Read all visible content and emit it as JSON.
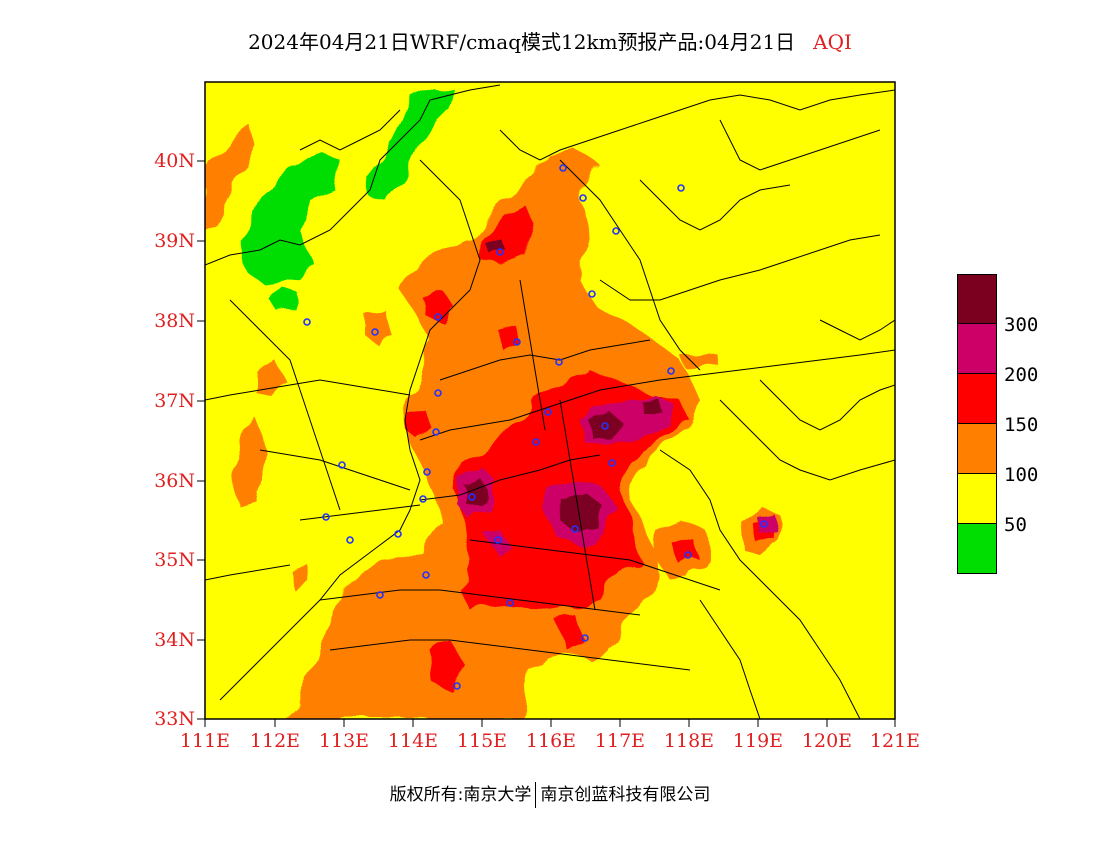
{
  "title": {
    "text": "2024年04月21日WRF/cmaq模式12km预报产品:04月21日",
    "variable": "AQI"
  },
  "map": {
    "lat_labels": [
      "40N",
      "39N",
      "38N",
      "37N",
      "36N",
      "35N",
      "34N",
      "33N"
    ],
    "lon_labels": [
      "111E",
      "112E",
      "113E",
      "114E",
      "115E",
      "116E",
      "117E",
      "118E",
      "119E",
      "120E",
      "121E"
    ]
  },
  "legend": {
    "levels": [
      "300",
      "200",
      "150",
      "100",
      "50"
    ],
    "colors": [
      "#7b0020",
      "#cc0066",
      "#ff0000",
      "#ff8000",
      "#ffff00",
      "#00dd00"
    ]
  },
  "footer": {
    "left": "版权所有:南京大学",
    "right": "南京创蓝科技有限公司"
  }
}
